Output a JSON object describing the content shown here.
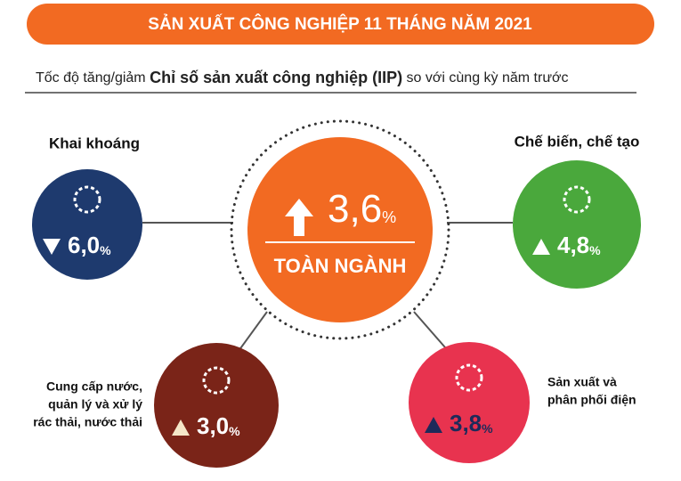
{
  "header": {
    "title": "SẢN XUẤT CÔNG NGHIỆP 11 THÁNG NĂM 2021"
  },
  "subtitle": {
    "prefix": "Tốc độ tăng/giảm ",
    "emphasis": "Chỉ số sản xuất công nghiệp (IIP)",
    "suffix": " so với cùng kỳ năm trước"
  },
  "total": {
    "value": "3,6",
    "unit": "%",
    "label": "TOÀN NGÀNH",
    "trend": "up"
  },
  "sectors": [
    {
      "label": [
        "Khai khoáng"
      ],
      "value": "6,0",
      "unit": "%",
      "trend": "down"
    },
    {
      "label": [
        "Chế biến, chế tạo"
      ],
      "value": "4,8",
      "unit": "%",
      "trend": "up"
    },
    {
      "label": [
        "Cung cấp nước,",
        "quản lý và xử lý",
        "rác thải, nước thải"
      ],
      "value": "3,0",
      "unit": "%",
      "trend": "up"
    },
    {
      "label": [
        "Sản xuất và",
        "phân phối điện"
      ],
      "value": "3,8",
      "unit": "%",
      "trend": "up"
    }
  ]
}
